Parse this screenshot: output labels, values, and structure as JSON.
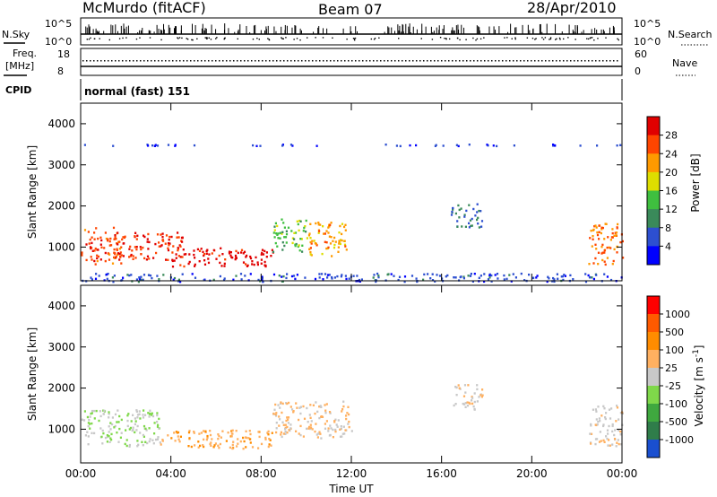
{
  "header": {
    "station": "McMurdo (fitACF)",
    "beam": "Beam 07",
    "date": "28/Apr/2010"
  },
  "status_panels": {
    "nsky_label": "N.Sky",
    "nsky_ticks": [
      "10^5",
      "10^0"
    ],
    "nsearch_label": "N.Search",
    "nsearch_ticks": [
      "10^5",
      "10^0"
    ],
    "freq_label_1": "Freq.",
    "freq_label_2": "[MHz]",
    "freq_ticks": [
      "18",
      "8"
    ],
    "nave_label": "Nave",
    "nave_ticks": [
      "60",
      "0"
    ],
    "cpid_label": "CPID",
    "cpid_value": "normal (fast) 151"
  },
  "colors": {
    "power_scale": [
      "#0000ff",
      "#2d4fd0",
      "#3a8a5a",
      "#3fbf3f",
      "#dede00",
      "#ff9a00",
      "#ff4500",
      "#e00000"
    ],
    "velocity_scale": [
      "#1a4fd0",
      "#2f7d4a",
      "#3fa83f",
      "#7fd84a",
      "#c8c8c8",
      "#ffb060",
      "#ff8c00",
      "#ff5a00",
      "#ff0000"
    ]
  },
  "chart_data": [
    {
      "type": "heatmap",
      "name": "power",
      "xlabel": "",
      "ylabel": "Slant Range [km]",
      "xlim": [
        0,
        24
      ],
      "ylim": [
        180,
        4500
      ],
      "yticks": [
        "1000",
        "2000",
        "3000",
        "4000"
      ],
      "colorbar": {
        "label": "Power [dB]",
        "ticks": [
          "4",
          "8",
          "12",
          "16",
          "20",
          "24",
          "28"
        ],
        "range": [
          0,
          32
        ]
      },
      "echo_regions": [
        {
          "t": [
            0.0,
            1.8
          ],
          "r": [
            600,
            1500
          ],
          "value": 26
        },
        {
          "t": [
            1.5,
            4.5
          ],
          "r": [
            700,
            1400
          ],
          "value": 28
        },
        {
          "t": [
            4.0,
            8.5
          ],
          "r": [
            550,
            1000
          ],
          "value": 30
        },
        {
          "t": [
            8.5,
            10.0
          ],
          "r": [
            900,
            1700
          ],
          "value": 14
        },
        {
          "t": [
            10.0,
            11.8
          ],
          "r": [
            800,
            1650
          ],
          "value": 22
        },
        {
          "t": [
            16.4,
            17.8
          ],
          "r": [
            1500,
            2100
          ],
          "value": 8
        },
        {
          "t": [
            22.5,
            24.0
          ],
          "r": [
            600,
            1600
          ],
          "value": 24
        },
        {
          "t": [
            0.0,
            24.0
          ],
          "r": [
            3480,
            3520
          ],
          "value": 5
        },
        {
          "t": [
            0.0,
            24.0
          ],
          "r": [
            180,
            380
          ],
          "value": 6
        }
      ]
    },
    {
      "type": "heatmap",
      "name": "velocity",
      "xlabel": "Time UT",
      "ylabel": "Slant Range [km]",
      "xlim": [
        0,
        24
      ],
      "ylim": [
        180,
        4500
      ],
      "xticks": [
        "00:00",
        "04:00",
        "08:00",
        "12:00",
        "16:00",
        "20:00",
        "00:00"
      ],
      "yticks": [
        "1000",
        "2000",
        "3000",
        "4000"
      ],
      "colorbar": {
        "label": "Velocity [m s^-1]",
        "ticks": [
          "1000",
          "500",
          "100",
          "25",
          "-25",
          "-100",
          "-500",
          "-1000"
        ],
        "range": [
          -1000,
          1000
        ]
      },
      "echo_regions": [
        {
          "t": [
            0.0,
            3.5
          ],
          "r": [
            600,
            1500
          ],
          "value": -100
        },
        {
          "t": [
            3.5,
            8.5
          ],
          "r": [
            550,
            1000
          ],
          "value": 300
        },
        {
          "t": [
            8.5,
            12.0
          ],
          "r": [
            800,
            1700
          ],
          "value": 120
        },
        {
          "t": [
            16.4,
            17.8
          ],
          "r": [
            1500,
            2100
          ],
          "value": 80
        },
        {
          "t": [
            22.5,
            24.0
          ],
          "r": [
            600,
            1600
          ],
          "value": 50
        }
      ]
    }
  ]
}
